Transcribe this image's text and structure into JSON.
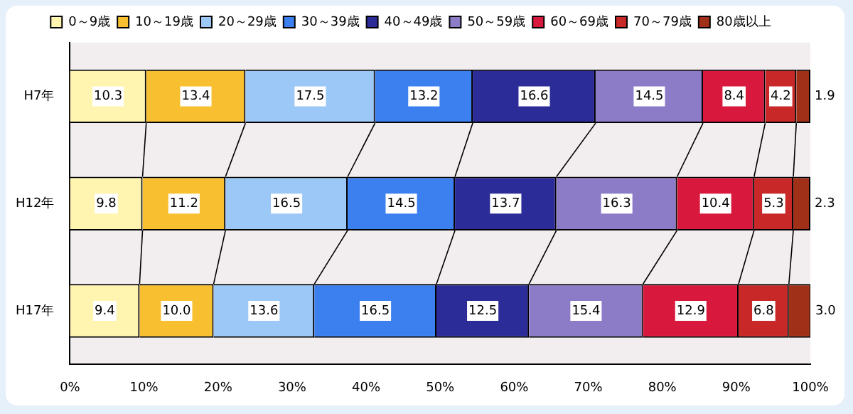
{
  "chart_data": {
    "type": "bar",
    "orientation": "horizontal",
    "stacked": true,
    "categories": [
      "H7年",
      "H12年",
      "H17年"
    ],
    "series": [
      {
        "name": "0～9歳",
        "color": "#fff4b0",
        "values": [
          10.3,
          9.8,
          9.4
        ],
        "value_labels": [
          "10.3",
          "9.8",
          "9.4"
        ]
      },
      {
        "name": "10～19歳",
        "color": "#f8c030",
        "values": [
          13.4,
          11.2,
          10.0
        ],
        "value_labels": [
          "13.4",
          "11.2",
          "10.0"
        ]
      },
      {
        "name": "20～29歳",
        "color": "#9cc8f8",
        "values": [
          17.5,
          16.5,
          13.6
        ],
        "value_labels": [
          "17.5",
          "16.5",
          "13.6"
        ]
      },
      {
        "name": "30～39歳",
        "color": "#3c80f0",
        "values": [
          13.2,
          14.5,
          16.5
        ],
        "value_labels": [
          "13.2",
          "14.5",
          "16.5"
        ]
      },
      {
        "name": "40～49歳",
        "color": "#2c2c98",
        "values": [
          16.6,
          13.7,
          12.5
        ],
        "value_labels": [
          "16.6",
          "13.7",
          "12.5"
        ]
      },
      {
        "name": "50～59歳",
        "color": "#8c7cc8",
        "values": [
          14.5,
          16.3,
          15.4
        ],
        "value_labels": [
          "14.5",
          "16.3",
          "15.4"
        ]
      },
      {
        "name": "60～69歳",
        "color": "#d8183c",
        "values": [
          8.4,
          10.4,
          12.9
        ],
        "value_labels": [
          "8.4",
          "10.4",
          "12.9"
        ]
      },
      {
        "name": "70～79歳",
        "color": "#c82828",
        "values": [
          4.2,
          5.3,
          6.8
        ],
        "value_labels": [
          "4.2",
          "5.3",
          "6.8"
        ]
      },
      {
        "name": "80歳以上",
        "color": "#a03018",
        "values": [
          1.9,
          2.3,
          3.0
        ],
        "value_labels": [
          "1.9",
          "2.3",
          "3.0"
        ]
      }
    ],
    "xlim": [
      0,
      100
    ],
    "xticks": [
      {
        "value": 0,
        "label": "0%"
      },
      {
        "value": 10,
        "label": "10%"
      },
      {
        "value": 20,
        "label": "20%"
      },
      {
        "value": 30,
        "label": "30%"
      },
      {
        "value": 40,
        "label": "40%"
      },
      {
        "value": 50,
        "label": "50%"
      },
      {
        "value": 60,
        "label": "60%"
      },
      {
        "value": 70,
        "label": "70%"
      },
      {
        "value": 80,
        "label": "80%"
      },
      {
        "value": 90,
        "label": "90%"
      },
      {
        "value": 100,
        "label": "100%"
      }
    ],
    "legend": "top",
    "grid": false
  }
}
